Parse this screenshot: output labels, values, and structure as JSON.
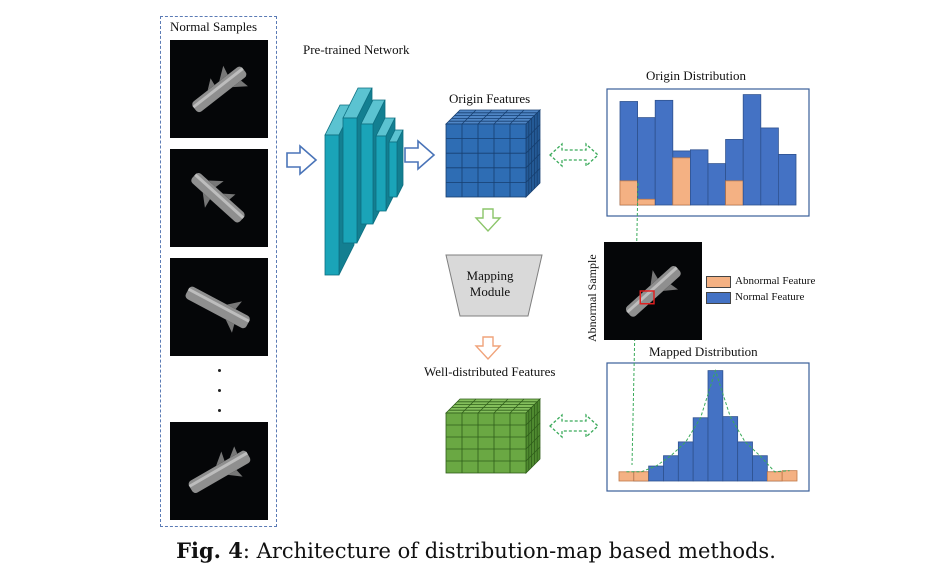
{
  "normal_samples": {
    "title": "Normal Samples",
    "ellipsis": "⋮"
  },
  "network": {
    "label": "Pre-trained Network"
  },
  "origin_features": {
    "label": "Origin Features"
  },
  "mapping_module": {
    "line1": "Mapping",
    "line2": "Module"
  },
  "well_features": {
    "label": "Well-distributed Features"
  },
  "origin_distribution": {
    "title": "Origin Distribution",
    "bars": [
      {
        "normal": 0.9,
        "abnormal": 0.21
      },
      {
        "normal": 0.76,
        "abnormal": 0.05
      },
      {
        "normal": 0.91,
        "abnormal": 0.0
      },
      {
        "normal": 0.47,
        "abnormal": 0.41
      },
      {
        "normal": 0.48,
        "abnormal": 0.0
      },
      {
        "normal": 0.36,
        "abnormal": 0.0
      },
      {
        "normal": 0.57,
        "abnormal": 0.21
      },
      {
        "normal": 0.96,
        "abnormal": 0.0
      },
      {
        "normal": 0.67,
        "abnormal": 0.0
      },
      {
        "normal": 0.44,
        "abnormal": 0.0
      }
    ]
  },
  "mapped_distribution": {
    "title": "Mapped Distribution",
    "bars": [
      {
        "normal": 0.0,
        "abnormal": 0.08
      },
      {
        "normal": 0.08,
        "abnormal": 0.08
      },
      {
        "normal": 0.13,
        "abnormal": 0.0
      },
      {
        "normal": 0.22,
        "abnormal": 0.0
      },
      {
        "normal": 0.34,
        "abnormal": 0.0
      },
      {
        "normal": 0.55,
        "abnormal": 0.0
      },
      {
        "normal": 0.96,
        "abnormal": 0.0
      },
      {
        "normal": 0.56,
        "abnormal": 0.0
      },
      {
        "normal": 0.34,
        "abnormal": 0.0
      },
      {
        "normal": 0.22,
        "abnormal": 0.0
      },
      {
        "normal": 0.08,
        "abnormal": 0.08
      },
      {
        "normal": 0.0,
        "abnormal": 0.09
      }
    ]
  },
  "abnormal_sample": {
    "label": "Abnormal Sample"
  },
  "legend": {
    "abnormal": "Abnormal Feature",
    "normal": "Normal Feature"
  },
  "colors": {
    "normal_bar": "#4472c4",
    "abnormal_bar": "#f4b183",
    "origin_cube": "#2e6db4",
    "well_cube": "#6aa843",
    "network_blocks": "#1aa4b8",
    "dashed_arrow": "#3aaa5a"
  },
  "caption": {
    "fig": "Fig. 4",
    "text": ": Architecture of distribution-map based methods."
  }
}
